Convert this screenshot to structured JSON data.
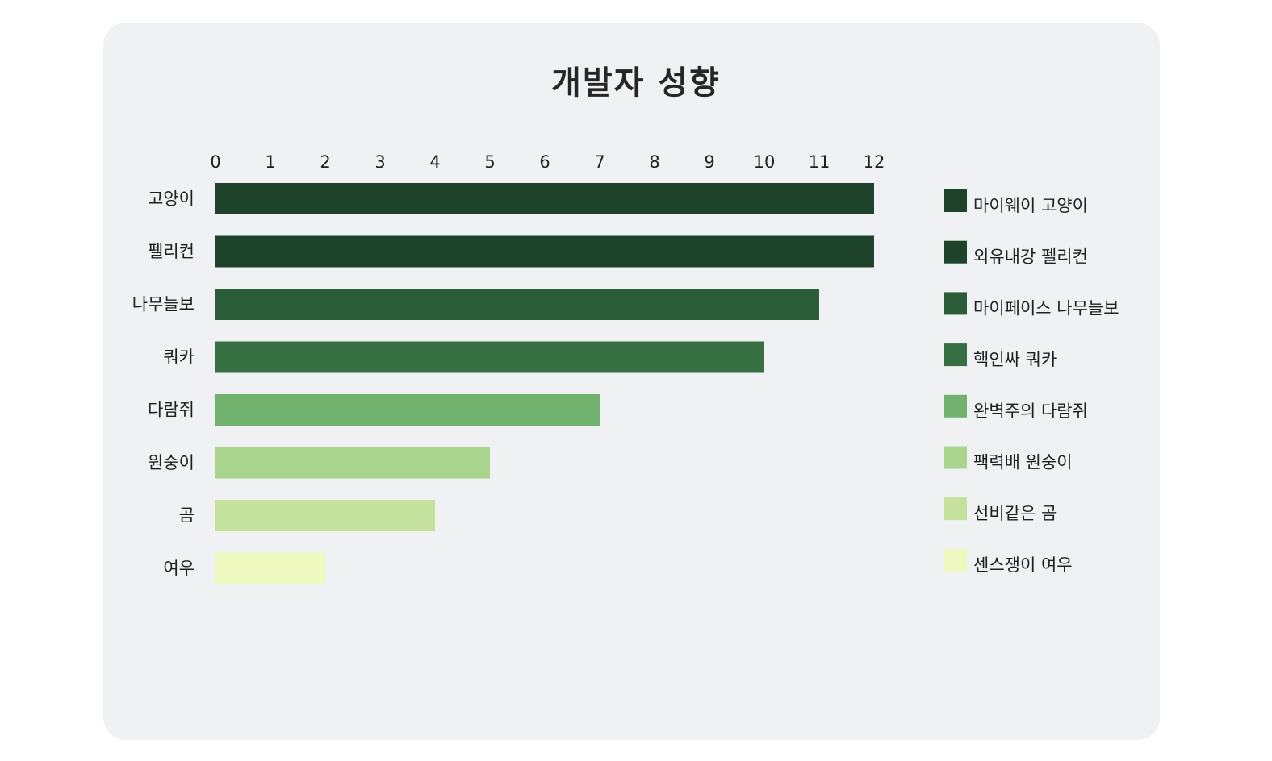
{
  "chart_data": {
    "type": "bar",
    "orientation": "horizontal",
    "title": "개발자 성향",
    "categories": [
      "고양이",
      "펠리컨",
      "나무늘보",
      "쿼카",
      "다람쥐",
      "원숭이",
      "곰",
      "여우"
    ],
    "values": [
      12,
      12,
      11,
      10,
      7,
      5,
      4,
      2
    ],
    "colors": [
      "#1d432a",
      "#1d432a",
      "#2a5c37",
      "#356f42",
      "#6fb16d",
      "#a8d48d",
      "#c4e19d",
      "#eef8bf"
    ],
    "legend": [
      {
        "label": "마이웨이 고양이",
        "color": "#1d432a"
      },
      {
        "label": "외유내강 펠리컨",
        "color": "#1d432a"
      },
      {
        "label": "마이페이스 나무늘보",
        "color": "#2a5c37"
      },
      {
        "label": "핵인싸 쿼카",
        "color": "#356f42"
      },
      {
        "label": "완벽주의 다람쥐",
        "color": "#6fb16d"
      },
      {
        "label": "팩력배 원숭이",
        "color": "#a8d48d"
      },
      {
        "label": "선비같은 곰",
        "color": "#c4e19d"
      },
      {
        "label": "센스쟁이 여우",
        "color": "#eef8bf"
      }
    ],
    "xlim": [
      0,
      12
    ],
    "xticks": [
      0,
      1,
      2,
      3,
      4,
      5,
      6,
      7,
      8,
      9,
      10,
      11,
      12
    ],
    "xaxis_position": "top",
    "legend_position": "right",
    "grid": false
  }
}
